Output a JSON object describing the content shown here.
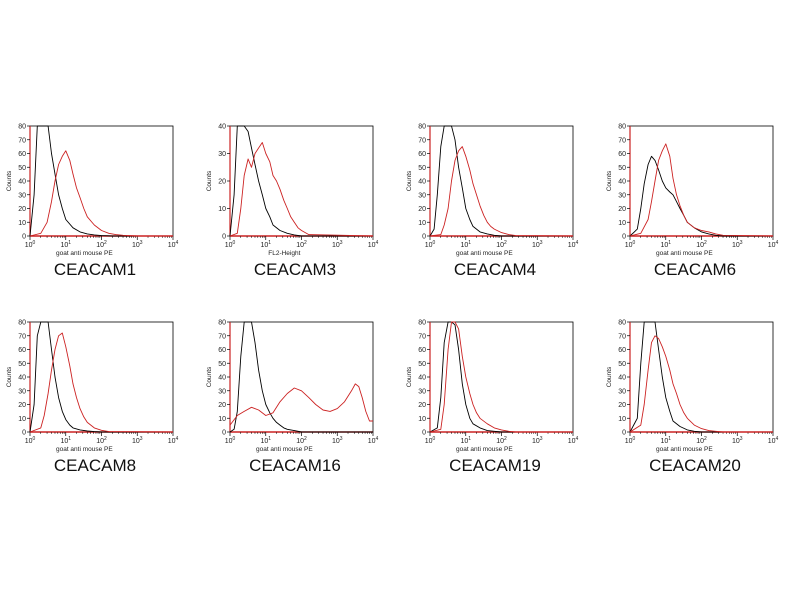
{
  "chart_data": [
    {
      "type": "line",
      "title": "CEACAM1",
      "xlabel": "goat anti mouse PE",
      "ylabel": "Counts",
      "xscale": "log",
      "xlim": [
        1,
        10000
      ],
      "ylim": [
        0,
        80
      ],
      "yticks": [
        0,
        10,
        20,
        30,
        40,
        50,
        60,
        70,
        80
      ],
      "xticks": [
        "10^0",
        "10^1",
        "10^2",
        "10^3",
        "10^4"
      ],
      "series": [
        {
          "color": "#000000",
          "x": [
            1,
            1.3,
            1.6,
            2,
            2.5,
            3.2,
            4,
            5,
            6.3,
            8,
            10,
            16,
            25,
            40,
            63,
            100,
            200,
            10000
          ],
          "y": [
            0,
            30,
            80,
            80,
            80,
            80,
            60,
            45,
            30,
            20,
            12,
            6,
            3,
            1.5,
            0.8,
            0.3,
            0,
            0
          ]
        },
        {
          "color": "#cc2222",
          "x": [
            1,
            2,
            3,
            4,
            5,
            6.3,
            8,
            10,
            13,
            16,
            20,
            25,
            32,
            40,
            63,
            100,
            160,
            250,
            400,
            1000,
            10000
          ],
          "y": [
            0,
            2,
            10,
            25,
            40,
            52,
            58,
            62,
            55,
            45,
            35,
            28,
            20,
            14,
            8,
            4,
            2,
            1,
            0.5,
            0,
            0
          ]
        }
      ]
    },
    {
      "type": "line",
      "title": "CEACAM3",
      "xlabel": "FL2-Height",
      "ylabel": "Counts",
      "xscale": "log",
      "xlim": [
        1,
        10000
      ],
      "ylim": [
        0,
        40
      ],
      "yticks": [
        0,
        10,
        20,
        30,
        40
      ],
      "xticks": [
        "10^0",
        "10^1",
        "10^2",
        "10^3",
        "10^4"
      ],
      "series": [
        {
          "color": "#000000",
          "x": [
            1,
            1.3,
            1.6,
            2,
            2.5,
            3.2,
            4,
            5,
            6.3,
            8,
            10,
            13,
            16,
            25,
            40,
            63,
            100,
            10000
          ],
          "y": [
            0,
            15,
            40,
            40,
            40,
            38,
            32,
            26,
            20,
            15,
            10,
            7,
            4,
            2,
            1,
            0.4,
            0,
            0
          ]
        },
        {
          "color": "#cc2222",
          "x": [
            1,
            1.6,
            2,
            2.5,
            3.2,
            4,
            5,
            6.3,
            8,
            10,
            13,
            16,
            20,
            25,
            32,
            40,
            50,
            63,
            80,
            100,
            160,
            10000
          ],
          "y": [
            0,
            1,
            10,
            22,
            28,
            25,
            30,
            32,
            34,
            30,
            27,
            22,
            20,
            17,
            13,
            10,
            7,
            5,
            3,
            2,
            0.5,
            0
          ]
        }
      ]
    },
    {
      "type": "line",
      "title": "CEACAM4",
      "xlabel": "goat anti mouse PE",
      "ylabel": "Counts",
      "xscale": "log",
      "xlim": [
        1,
        10000
      ],
      "ylim": [
        0,
        80
      ],
      "yticks": [
        0,
        10,
        20,
        30,
        40,
        50,
        60,
        70,
        80
      ],
      "xticks": [
        "10^0",
        "10^1",
        "10^2",
        "10^3",
        "10^4"
      ],
      "series": [
        {
          "color": "#000000",
          "x": [
            1,
            1.3,
            1.6,
            2,
            2.5,
            3.2,
            4,
            5,
            6.3,
            8,
            10,
            13,
            16,
            25,
            40,
            63,
            100,
            10000
          ],
          "y": [
            0,
            5,
            30,
            65,
            80,
            80,
            80,
            70,
            50,
            35,
            20,
            12,
            7,
            3,
            1.5,
            0.5,
            0,
            0
          ]
        },
        {
          "color": "#cc2222",
          "x": [
            1,
            2,
            2.5,
            3.2,
            4,
            5,
            6.3,
            8,
            10,
            13,
            16,
            20,
            25,
            32,
            40,
            50,
            63,
            100,
            160,
            250,
            10000
          ],
          "y": [
            0,
            1,
            8,
            20,
            40,
            55,
            62,
            65,
            58,
            48,
            38,
            30,
            22,
            15,
            10,
            7,
            5,
            2.5,
            1,
            0.3,
            0
          ]
        }
      ]
    },
    {
      "type": "line",
      "title": "CEACAM6",
      "xlabel": "goat anti mouse PE",
      "ylabel": "Counts",
      "xscale": "log",
      "xlim": [
        1,
        10000
      ],
      "ylim": [
        0,
        80
      ],
      "yticks": [
        0,
        10,
        20,
        30,
        40,
        50,
        60,
        70,
        80
      ],
      "xticks": [
        "10^0",
        "10^1",
        "10^2",
        "10^3",
        "10^4"
      ],
      "series": [
        {
          "color": "#000000",
          "x": [
            1,
            1.6,
            2,
            2.5,
            3.2,
            4,
            5,
            6.3,
            8,
            10,
            13,
            16,
            20,
            25,
            32,
            40,
            63,
            100,
            160,
            250,
            400,
            10000
          ],
          "y": [
            0,
            5,
            20,
            38,
            52,
            58,
            55,
            48,
            40,
            35,
            32,
            30,
            25,
            20,
            15,
            10,
            6,
            3,
            1.5,
            0.5,
            0,
            0
          ]
        },
        {
          "color": "#cc2222",
          "x": [
            1,
            2,
            3.2,
            4,
            5,
            6.3,
            8,
            10,
            13,
            16,
            20,
            25,
            32,
            40,
            63,
            100,
            160,
            250,
            400,
            10000
          ],
          "y": [
            0,
            2,
            12,
            25,
            40,
            55,
            62,
            67,
            58,
            42,
            30,
            22,
            15,
            10,
            6,
            4,
            3,
            1.5,
            0.5,
            0
          ]
        }
      ]
    },
    {
      "type": "line",
      "title": "CEACAM8",
      "xlabel": "goat anti mouse PE",
      "ylabel": "Counts",
      "xscale": "log",
      "xlim": [
        1,
        10000
      ],
      "ylim": [
        0,
        80
      ],
      "yticks": [
        0,
        10,
        20,
        30,
        40,
        50,
        60,
        70,
        80
      ],
      "xticks": [
        "10^0",
        "10^1",
        "10^2",
        "10^3",
        "10^4"
      ],
      "series": [
        {
          "color": "#000000",
          "x": [
            1,
            1.3,
            1.6,
            2,
            2.5,
            3.2,
            4,
            5,
            6.3,
            8,
            10,
            13,
            16,
            25,
            40,
            63,
            100,
            10000
          ],
          "y": [
            0,
            20,
            70,
            80,
            80,
            80,
            60,
            40,
            25,
            15,
            9,
            5,
            3,
            1.5,
            0.7,
            0.3,
            0,
            0
          ]
        },
        {
          "color": "#cc2222",
          "x": [
            1,
            2,
            2.5,
            3.2,
            4,
            5,
            6.3,
            8,
            10,
            13,
            16,
            20,
            25,
            32,
            40,
            63,
            100,
            160,
            10000
          ],
          "y": [
            0,
            3,
            12,
            28,
            45,
            60,
            70,
            72,
            62,
            48,
            35,
            25,
            17,
            11,
            7,
            3,
            1.2,
            0.3,
            0
          ]
        }
      ]
    },
    {
      "type": "line",
      "title": "CEACAM16",
      "xlabel": "goat anti mouse PE",
      "ylabel": "Counts",
      "xscale": "log",
      "xlim": [
        1,
        10000
      ],
      "ylim": [
        0,
        80
      ],
      "yticks": [
        0,
        10,
        20,
        30,
        40,
        50,
        60,
        70,
        80
      ],
      "xticks": [
        "10^0",
        "10^1",
        "10^2",
        "10^3",
        "10^4"
      ],
      "series": [
        {
          "color": "#000000",
          "x": [
            1,
            1.3,
            1.6,
            2,
            2.5,
            3.2,
            4,
            5,
            6.3,
            8,
            10,
            13,
            16,
            20,
            25,
            32,
            40,
            63,
            100,
            10000
          ],
          "y": [
            0,
            2,
            15,
            55,
            80,
            80,
            80,
            65,
            45,
            30,
            20,
            14,
            10,
            7,
            5,
            3,
            2,
            1,
            0,
            0
          ]
        },
        {
          "color": "#cc2222",
          "x": [
            1,
            1.6,
            2.5,
            4,
            6.3,
            10,
            16,
            25,
            40,
            63,
            100,
            160,
            250,
            400,
            630,
            1000,
            1600,
            2500,
            3200,
            4000,
            5000,
            6300,
            8000,
            10000
          ],
          "y": [
            5,
            12,
            15,
            18,
            16,
            12,
            14,
            22,
            28,
            32,
            30,
            25,
            20,
            16,
            15,
            17,
            22,
            30,
            35,
            33,
            25,
            15,
            8,
            8
          ]
        }
      ]
    },
    {
      "type": "line",
      "title": "CEACAM19",
      "xlabel": "goat anti mouse PE",
      "ylabel": "Counts",
      "xscale": "log",
      "xlim": [
        1,
        10000
      ],
      "ylim": [
        0,
        80
      ],
      "yticks": [
        0,
        10,
        20,
        30,
        40,
        50,
        60,
        70,
        80
      ],
      "xticks": [
        "10^0",
        "10^1",
        "10^2",
        "10^3",
        "10^4"
      ],
      "series": [
        {
          "color": "#000000",
          "x": [
            1,
            1.6,
            2,
            2.5,
            3.2,
            4,
            5,
            6.3,
            8,
            10,
            13,
            16,
            25,
            40,
            63,
            100,
            10000
          ],
          "y": [
            0,
            3,
            25,
            65,
            80,
            80,
            78,
            60,
            35,
            20,
            10,
            6,
            3,
            1,
            0.5,
            0,
            0
          ]
        },
        {
          "color": "#cc2222",
          "x": [
            1,
            2,
            2.5,
            3.2,
            4,
            5,
            6.3,
            8,
            10,
            13,
            16,
            20,
            25,
            40,
            63,
            100,
            160,
            250,
            10000
          ],
          "y": [
            0,
            2,
            20,
            60,
            80,
            80,
            75,
            55,
            40,
            28,
            20,
            14,
            10,
            6,
            3,
            1.5,
            0.5,
            0,
            0
          ]
        }
      ]
    },
    {
      "type": "line",
      "title": "CEACAM20",
      "xlabel": "goat anti mouse PE",
      "ylabel": "Counts",
      "xscale": "log",
      "xlim": [
        1,
        10000
      ],
      "ylim": [
        0,
        80
      ],
      "yticks": [
        0,
        10,
        20,
        30,
        40,
        50,
        60,
        70,
        80
      ],
      "xticks": [
        "10^0",
        "10^1",
        "10^2",
        "10^3",
        "10^4"
      ],
      "series": [
        {
          "color": "#000000",
          "x": [
            1,
            1.6,
            2,
            2.5,
            3.2,
            4,
            5,
            6.3,
            8,
            10,
            13,
            16,
            25,
            40,
            63,
            100,
            10000
          ],
          "y": [
            0,
            10,
            50,
            80,
            80,
            80,
            80,
            60,
            40,
            25,
            15,
            8,
            4,
            1.5,
            0.5,
            0,
            0
          ]
        },
        {
          "color": "#cc2222",
          "x": [
            1,
            2,
            2.5,
            3.2,
            4,
            5,
            6.3,
            8,
            10,
            13,
            16,
            20,
            25,
            32,
            40,
            63,
            100,
            160,
            250,
            400,
            10000
          ],
          "y": [
            0,
            5,
            20,
            45,
            65,
            70,
            68,
            62,
            55,
            45,
            35,
            28,
            20,
            14,
            10,
            5,
            2.5,
            1,
            0.5,
            0,
            0
          ]
        }
      ]
    }
  ]
}
